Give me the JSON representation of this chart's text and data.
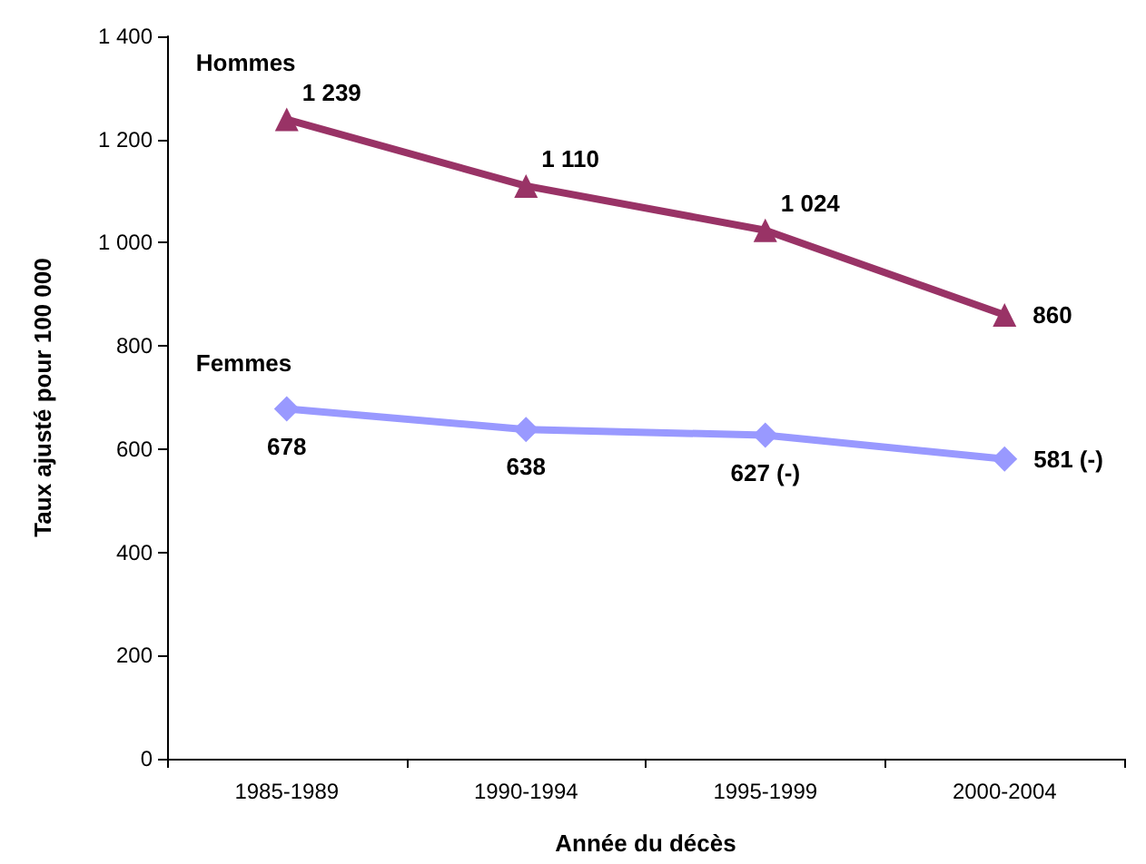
{
  "chart_data": {
    "type": "line",
    "xlabel": "Année du décès",
    "ylabel": "Taux ajusté pour 100 000",
    "categories": [
      "1985-1989",
      "1990-1994",
      "1995-1999",
      "2000-2004"
    ],
    "series": [
      {
        "name": "Hommes",
        "color": "#993366",
        "marker": "triangle",
        "values": [
          1239,
          1110,
          1024,
          860
        ],
        "value_labels": [
          "1 239",
          "1 110",
          "1 024",
          "860"
        ]
      },
      {
        "name": "Femmes",
        "color": "#9999ff",
        "marker": "diamond",
        "values": [
          678,
          638,
          627,
          581
        ],
        "value_labels": [
          "678",
          "638",
          "627 (-)",
          "581 (-)"
        ]
      }
    ],
    "ylim": [
      0,
      1400
    ],
    "yticks": [
      0,
      200,
      400,
      600,
      800,
      {
        "value": 1000,
        "label": "1 000"
      },
      {
        "value": 1200,
        "label": "1 200"
      },
      {
        "value": 1400,
        "label": "1 400"
      }
    ],
    "grid": false,
    "legend": false,
    "line_style": "solid"
  }
}
